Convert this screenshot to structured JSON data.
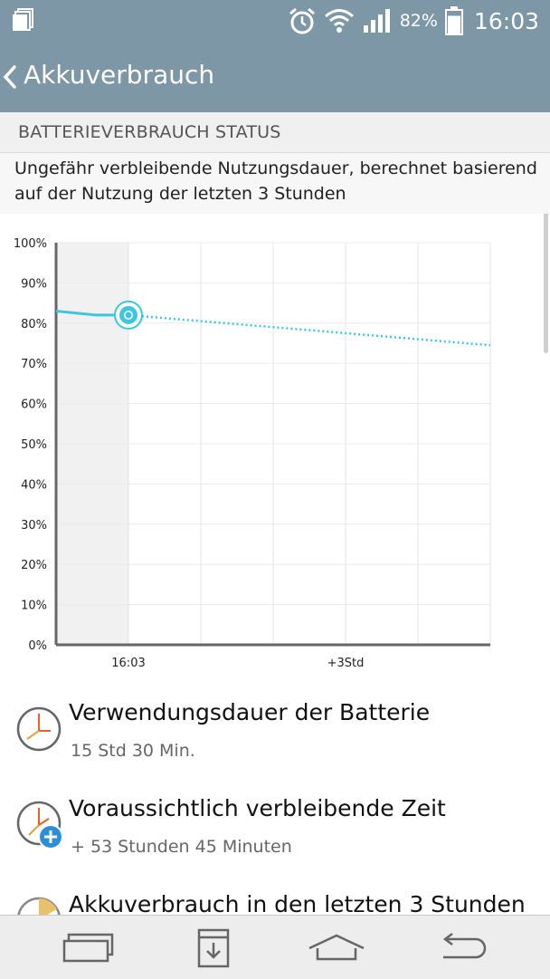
{
  "status_bar": {
    "battery_percent": "82%",
    "time": "16:03",
    "battery_level": 0.82
  },
  "app_bar": {
    "title": "Akkuverbrauch"
  },
  "section": {
    "header": "BATTERIEVERBRAUCH STATUS",
    "description": "Ungefähr verbleibende Nutzungsdauer, berechnet basierend auf der Nutzung der letzten 3 Stunden"
  },
  "chart_data": {
    "type": "line",
    "ytick_labels": [
      "100%",
      "90%",
      "80%",
      "70%",
      "60%",
      "50%",
      "40%",
      "30%",
      "20%",
      "10%",
      "0%"
    ],
    "xtick_labels": [
      "16:03",
      "+3Std"
    ],
    "ylim": [
      0,
      100
    ],
    "xlim": [
      -1,
      5
    ],
    "grid": true,
    "series": [
      {
        "style": "solid",
        "color": "#3ec7dc",
        "x": [
          -1,
          -0.45,
          0
        ],
        "y": [
          83,
          82,
          82
        ]
      },
      {
        "style": "dotted",
        "color": "#3ec7dc",
        "x": [
          0,
          5
        ],
        "y": [
          82,
          74.5
        ]
      }
    ],
    "current_point": {
      "x": 0,
      "y": 82
    }
  },
  "items": [
    {
      "title": "Verwendungsdauer der Batterie",
      "subtitle": "15 Std 30 Min.",
      "icon": "clock-icon"
    },
    {
      "title": "Voraussichtlich verbleibende Zeit",
      "subtitle": "+ 53 Stunden 45 Minuten",
      "icon": "clock-plus-icon"
    },
    {
      "title": "Akkuverbrauch in den letzten 3 Stunden",
      "icon": "pie-chart-icon"
    }
  ],
  "nav_bar": {
    "icons": [
      "recent-apps-icon",
      "download-icon",
      "home-icon",
      "back-icon"
    ]
  }
}
